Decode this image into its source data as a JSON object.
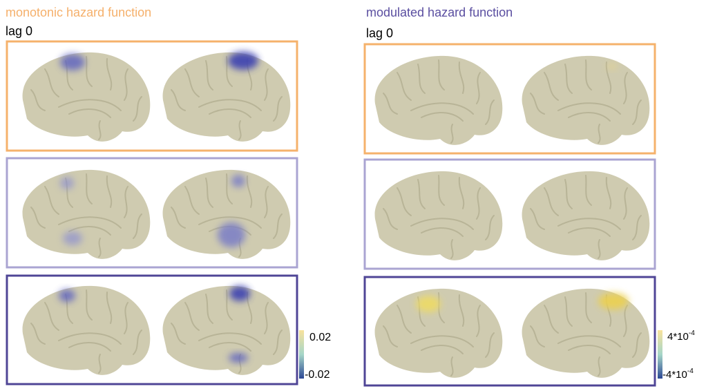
{
  "left": {
    "title": "monotonic hazard function",
    "lag": "lag 0",
    "colorbar": {
      "max": "0.02",
      "min": "-0.02"
    }
  },
  "right": {
    "title": "modulated hazard function",
    "lag": "lag 0",
    "colorbar": {
      "max": {
        "base": "4*10",
        "exponent": "-4"
      },
      "min": {
        "base": "-4*10",
        "exponent": "-4"
      }
    }
  }
}
